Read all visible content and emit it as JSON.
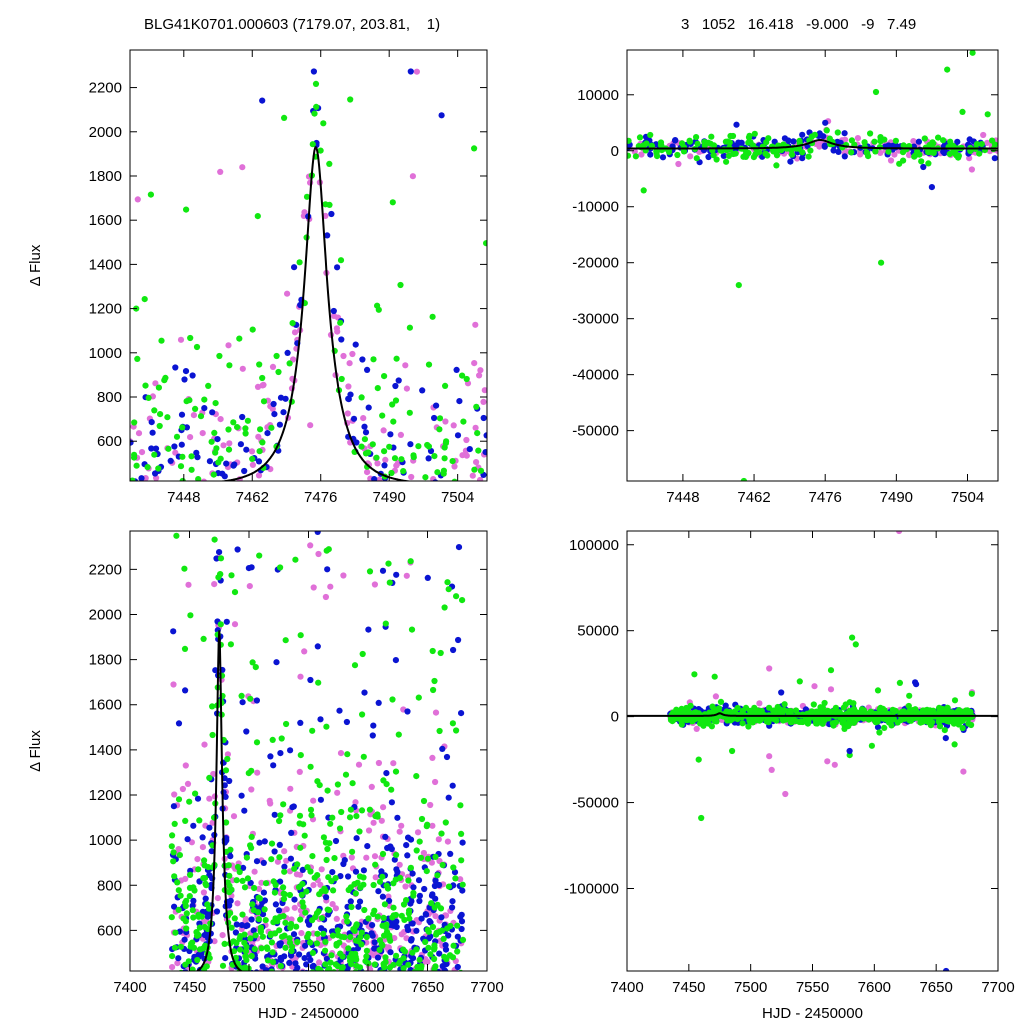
{
  "header": {
    "left_title": "BLG41K0701.000603 (7179.07, 203.81,    1)",
    "right_title": "3   1052   16.418   -9.000   -9   7.49"
  },
  "colors": {
    "magenta": "#e070d8",
    "blue": "#0a14d2",
    "green": "#10e810",
    "model": "#000000"
  },
  "chart_data": [
    {
      "id": "top-left",
      "type": "scatter",
      "title": "",
      "xlabel": "",
      "ylabel": "Δ Flux",
      "xlim": [
        7437,
        7510
      ],
      "ylim": [
        420,
        2370
      ],
      "xticks": [
        7448,
        7462,
        7476,
        7490,
        7504
      ],
      "yticks": [
        600,
        800,
        1000,
        1200,
        1400,
        1600,
        1800,
        2000,
        2200
      ],
      "model": {
        "t0": 7475.0,
        "base": 400,
        "peak": 1930,
        "tau": 7.5,
        "u0": 0.3
      },
      "series": [
        {
          "color": "magenta",
          "n": 150,
          "seed": 11,
          "spread": 350,
          "outlier_frac": 0.1
        },
        {
          "color": "blue",
          "n": 130,
          "seed": 23,
          "spread": 280,
          "outlier_frac": 0.05
        },
        {
          "color": "green",
          "n": 170,
          "seed": 37,
          "spread": 420,
          "outlier_frac": 0.12
        }
      ]
    },
    {
      "id": "top-right",
      "type": "scatter",
      "title": "",
      "xlabel": "",
      "ylabel": "",
      "xlim": [
        7437,
        7510
      ],
      "ylim": [
        -59000,
        18000
      ],
      "xticks": [
        7448,
        7462,
        7476,
        7490,
        7504
      ],
      "yticks": [
        10000,
        0,
        -10000,
        -20000,
        -30000,
        -40000,
        -50000
      ],
      "model": {
        "t0": 7475.0,
        "base": 400,
        "peak": 1930,
        "tau": 7.5,
        "u0": 0.3
      },
      "series": [
        {
          "color": "magenta",
          "n": 160,
          "seed": 51,
          "spread": 700,
          "outlier_frac": 0.02
        },
        {
          "color": "blue",
          "n": 150,
          "seed": 63,
          "spread": 900,
          "outlier_frac": 0.03
        },
        {
          "color": "green",
          "n": 190,
          "seed": 79,
          "spread": 1100,
          "outlier_frac": 0.03
        }
      ],
      "outliers": [
        {
          "x": 7505,
          "y": 17500,
          "color": "green"
        },
        {
          "x": 7500,
          "y": 14500,
          "color": "green"
        },
        {
          "x": 7486,
          "y": 10500,
          "color": "green"
        },
        {
          "x": 7459,
          "y": -24000,
          "color": "green"
        },
        {
          "x": 7487,
          "y": -20000,
          "color": "green"
        },
        {
          "x": 7460,
          "y": -59000,
          "color": "green"
        },
        {
          "x": 7497,
          "y": -6500,
          "color": "blue"
        },
        {
          "x": 7476,
          "y": 5000,
          "color": "blue"
        }
      ]
    },
    {
      "id": "bottom-left",
      "type": "scatter",
      "title": "",
      "xlabel": "HJD - 2450000",
      "ylabel": "Δ Flux",
      "xlim": [
        7400,
        7700
      ],
      "ylim": [
        420,
        2370
      ],
      "xticks": [
        7400,
        7450,
        7500,
        7550,
        7600,
        7650,
        7700
      ],
      "yticks": [
        600,
        800,
        1000,
        1200,
        1400,
        1600,
        1800,
        2000,
        2200
      ],
      "model": {
        "t0": 7475.0,
        "base": 400,
        "peak": 1930,
        "tau": 7.5,
        "u0": 0.3
      },
      "series": [
        {
          "color": "magenta",
          "n": 420,
          "seed": 101,
          "spread": 450,
          "outlier_frac": 0.15
        },
        {
          "color": "blue",
          "n": 560,
          "seed": 113,
          "spread": 420,
          "outlier_frac": 0.15
        },
        {
          "color": "green",
          "n": 620,
          "seed": 127,
          "spread": 480,
          "outlier_frac": 0.18
        }
      ],
      "data_xrange": [
        7435,
        7680
      ]
    },
    {
      "id": "bottom-right",
      "type": "scatter",
      "title": "",
      "xlabel": "HJD - 2450000",
      "ylabel": "",
      "xlim": [
        7400,
        7700
      ],
      "ylim": [
        -148000,
        108000
      ],
      "xticks": [
        7400,
        7450,
        7500,
        7550,
        7600,
        7650,
        7700
      ],
      "yticks": [
        100000,
        50000,
        0,
        -50000,
        -100000
      ],
      "model": {
        "t0": 7475.0,
        "base": 400,
        "peak": 1930,
        "tau": 7.5,
        "u0": 0.3
      },
      "series": [
        {
          "color": "magenta",
          "n": 380,
          "seed": 201,
          "spread": 1800,
          "outlier_frac": 0.03
        },
        {
          "color": "blue",
          "n": 460,
          "seed": 213,
          "spread": 2000,
          "outlier_frac": 0.03
        },
        {
          "color": "green",
          "n": 560,
          "seed": 227,
          "spread": 2400,
          "outlier_frac": 0.04
        }
      ],
      "data_xrange": [
        7435,
        7680
      ],
      "outliers": [
        {
          "x": 7620,
          "y": 108000,
          "color": "magenta"
        },
        {
          "x": 7582,
          "y": 46000,
          "color": "green"
        },
        {
          "x": 7585,
          "y": 42000,
          "color": "green"
        },
        {
          "x": 7515,
          "y": 28000,
          "color": "magenta"
        },
        {
          "x": 7565,
          "y": 27000,
          "color": "green"
        },
        {
          "x": 7633,
          "y": 20000,
          "color": "blue"
        },
        {
          "x": 7458,
          "y": -25000,
          "color": "green"
        },
        {
          "x": 7460,
          "y": -59000,
          "color": "green"
        },
        {
          "x": 7485,
          "y": -20000,
          "color": "green"
        },
        {
          "x": 7515,
          "y": -23000,
          "color": "magenta"
        },
        {
          "x": 7517,
          "y": -31000,
          "color": "magenta"
        },
        {
          "x": 7528,
          "y": -45000,
          "color": "magenta"
        },
        {
          "x": 7562,
          "y": -26000,
          "color": "magenta"
        },
        {
          "x": 7568,
          "y": -28000,
          "color": "magenta"
        },
        {
          "x": 7580,
          "y": -20000,
          "color": "blue"
        },
        {
          "x": 7598,
          "y": -17000,
          "color": "green"
        },
        {
          "x": 7672,
          "y": -32000,
          "color": "magenta"
        },
        {
          "x": 7658,
          "y": -148000,
          "color": "blue"
        }
      ]
    }
  ]
}
